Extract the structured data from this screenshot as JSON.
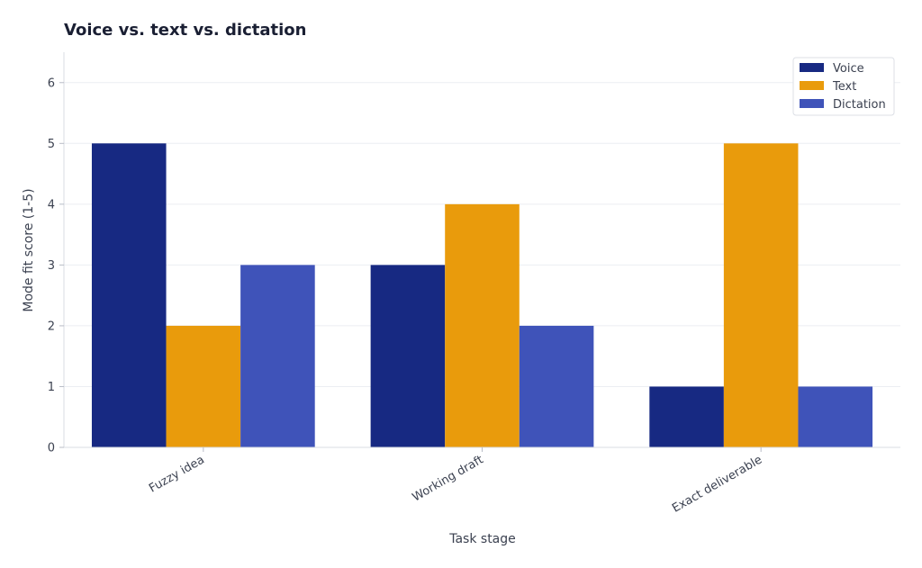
{
  "chart_data": {
    "type": "bar",
    "title": "Voice vs. text vs. dictation",
    "xlabel": "Task stage",
    "ylabel": "Mode fit score (1-5)",
    "categories": [
      "Fuzzy idea",
      "Working draft",
      "Exact deliverable"
    ],
    "series": [
      {
        "name": "Voice",
        "color": "#172982",
        "values": [
          5,
          3,
          1
        ]
      },
      {
        "name": "Text",
        "color": "#e99b0c",
        "values": [
          2,
          4,
          5
        ]
      },
      {
        "name": "Dictation",
        "color": "#3f53b9",
        "values": [
          3,
          2,
          1
        ]
      }
    ],
    "ylim": [
      0,
      6.5
    ],
    "yticks": [
      0,
      1,
      2,
      3,
      4,
      5,
      6
    ],
    "grid": "horizontal",
    "legend_position": "top-right"
  }
}
